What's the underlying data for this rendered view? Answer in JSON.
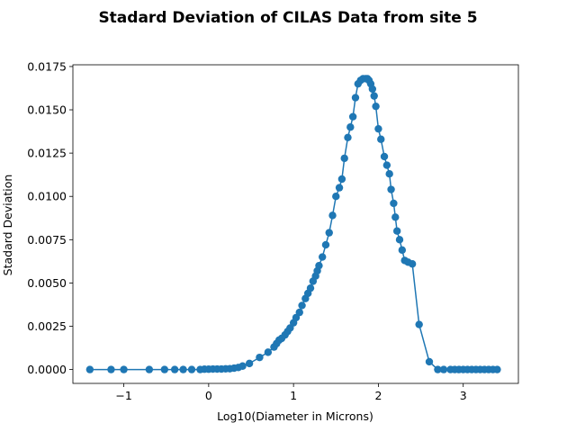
{
  "chart_data": {
    "type": "line",
    "title": "Stadard Deviation of CILAS Data from site 5",
    "xlabel": "Log10(Diameter in Microns)",
    "ylabel": "Stadard Deviation",
    "xlim": [
      -1.6,
      3.65
    ],
    "ylim": [
      -0.0008,
      0.0176
    ],
    "grid": false,
    "legend": "none",
    "color": "#1f77b4",
    "marker": "circle",
    "x_ticks": [
      -1,
      0,
      1,
      2,
      3
    ],
    "x_tick_labels": [
      "−1",
      "0",
      "1",
      "2",
      "3"
    ],
    "y_ticks": [
      0.0,
      0.0025,
      0.005,
      0.0075,
      0.01,
      0.0125,
      0.015,
      0.0175
    ],
    "y_tick_labels": [
      "0.0000",
      "0.0025",
      "0.0050",
      "0.0075",
      "0.0100",
      "0.0125",
      "0.0150",
      "0.0175"
    ],
    "series": [
      {
        "x": [
          -1.4,
          -1.15,
          -1.0,
          -0.7,
          -0.52,
          -0.4,
          -0.3,
          -0.2,
          -0.1,
          -0.05,
          0.0,
          0.05,
          0.1,
          0.15,
          0.2,
          0.25,
          0.3,
          0.35,
          0.4,
          0.48,
          0.6,
          0.7,
          0.77,
          0.8,
          0.83,
          0.86,
          0.9,
          0.93,
          0.96,
          1.0,
          1.03,
          1.07,
          1.1,
          1.14,
          1.17,
          1.2,
          1.23,
          1.26,
          1.28,
          1.3,
          1.34,
          1.38,
          1.42,
          1.46,
          1.5,
          1.54,
          1.57,
          1.6,
          1.64,
          1.67,
          1.7,
          1.73,
          1.76,
          1.79,
          1.82,
          1.85,
          1.87,
          1.89,
          1.91,
          1.93,
          1.95,
          1.97,
          2.0,
          2.03,
          2.07,
          2.1,
          2.13,
          2.15,
          2.18,
          2.2,
          2.22,
          2.25,
          2.28,
          2.31,
          2.35,
          2.4,
          2.48,
          2.6,
          2.7,
          2.77,
          2.85,
          2.9,
          2.95,
          3.0,
          3.05,
          3.1,
          3.15,
          3.2,
          3.25,
          3.3,
          3.35,
          3.4
        ],
        "y": [
          0.0,
          0.0,
          0.0,
          0.0,
          0.0,
          0.0,
          0.0,
          0.0,
          0.0,
          2e-05,
          2e-05,
          3e-05,
          3e-05,
          3e-05,
          4e-05,
          5e-05,
          8e-05,
          0.00012,
          0.0002,
          0.00035,
          0.0007,
          0.001,
          0.0013,
          0.0015,
          0.0017,
          0.0018,
          0.002,
          0.0022,
          0.0024,
          0.0027,
          0.003,
          0.0033,
          0.0037,
          0.0041,
          0.0044,
          0.0047,
          0.0051,
          0.0054,
          0.0057,
          0.006,
          0.0065,
          0.0072,
          0.0079,
          0.0089,
          0.01,
          0.0105,
          0.011,
          0.0122,
          0.0134,
          0.014,
          0.0146,
          0.0157,
          0.0165,
          0.0167,
          0.0168,
          0.0168,
          0.0168,
          0.0167,
          0.0165,
          0.0162,
          0.0158,
          0.0152,
          0.0139,
          0.0133,
          0.0123,
          0.0118,
          0.0113,
          0.0104,
          0.0096,
          0.0088,
          0.008,
          0.0075,
          0.0069,
          0.0063,
          0.0062,
          0.0061,
          0.0026,
          0.00045,
          0.0,
          0.0,
          0.0,
          0.0,
          0.0,
          0.0,
          0.0,
          0.0,
          0.0,
          0.0,
          0.0,
          0.0,
          0.0,
          0.0
        ]
      }
    ]
  }
}
